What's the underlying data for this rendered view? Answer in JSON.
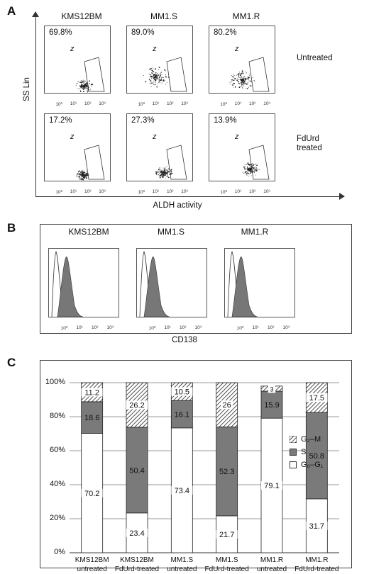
{
  "panelA": {
    "letter": "A",
    "columns": [
      "KMS12BM",
      "MM1.S",
      "MM1.R"
    ],
    "rows": [
      {
        "label_lines": [
          "Untreated"
        ],
        "percents": [
          "69.8%",
          "89.0%",
          "80.2%"
        ]
      },
      {
        "label_lines": [
          "FdUrd",
          "treated"
        ],
        "percents": [
          "17.2%",
          "27.3%",
          "13.9%"
        ]
      }
    ],
    "gate_label": "z",
    "y_axis_title": "SS Lin",
    "x_axis_title": "ALDH activity",
    "x_ticks": [
      "10⁰",
      "10¹",
      "10²",
      "10³"
    ]
  },
  "panelB": {
    "letter": "B",
    "columns": [
      "KMS12BM",
      "MM1.S",
      "MM1.R"
    ],
    "x_axis_title": "CD138",
    "x_ticks": [
      "10⁰",
      "10¹",
      "10²",
      "10³"
    ]
  },
  "panelC": {
    "letter": "C",
    "legend": [
      {
        "label": "G₂–M",
        "pattern": "hatch"
      },
      {
        "label": "S",
        "pattern": "gray"
      },
      {
        "label": "G₀–G₁",
        "pattern": "white"
      }
    ]
  },
  "colors": {
    "gray_fill": "#7a7a7a",
    "white_fill": "#ffffff",
    "line": "#222222"
  },
  "chart_data": {
    "type": "bar",
    "stacked": true,
    "categories": [
      "KMS12BM untreated",
      "KMS12BM FdUrd-treated",
      "MM1.S untreated",
      "MM1.S FdUrd-treated",
      "MM1.R untreated",
      "MM1.R FdUrd-treated"
    ],
    "category_lines": [
      [
        "KMS12BM",
        "untreated"
      ],
      [
        "KMS12BM",
        "FdUrd-treated"
      ],
      [
        "MM1.S",
        "untreated"
      ],
      [
        "MM1.S",
        "FdUrd-treated"
      ],
      [
        "MM1.R",
        "untreated"
      ],
      [
        "MM1.R",
        "FdUrd-treated"
      ]
    ],
    "series": [
      {
        "name": "G₀–G₁",
        "values": [
          70.2,
          23.4,
          73.4,
          21.7,
          79.1,
          31.7
        ],
        "labels": [
          "70.2",
          "23.4",
          "73.4",
          "21.7",
          "79.1",
          "31.7"
        ]
      },
      {
        "name": "S",
        "values": [
          18.6,
          50.4,
          16.1,
          52.3,
          15.9,
          50.8
        ],
        "labels": [
          "18.6",
          "50.4",
          "16.1",
          "52.3",
          "15.9",
          "50.8"
        ]
      },
      {
        "name": "G₂–M",
        "values": [
          11.2,
          26.2,
          10.5,
          26,
          3,
          17.5
        ],
        "labels": [
          "11.2",
          "26.2",
          "10.5",
          "26",
          "3",
          "17.5"
        ]
      }
    ],
    "ylim": [
      0,
      100
    ],
    "yticks": [
      "0%",
      "20%",
      "40%",
      "60%",
      "80%",
      "100%"
    ],
    "grid": true,
    "legend_position": "right"
  }
}
